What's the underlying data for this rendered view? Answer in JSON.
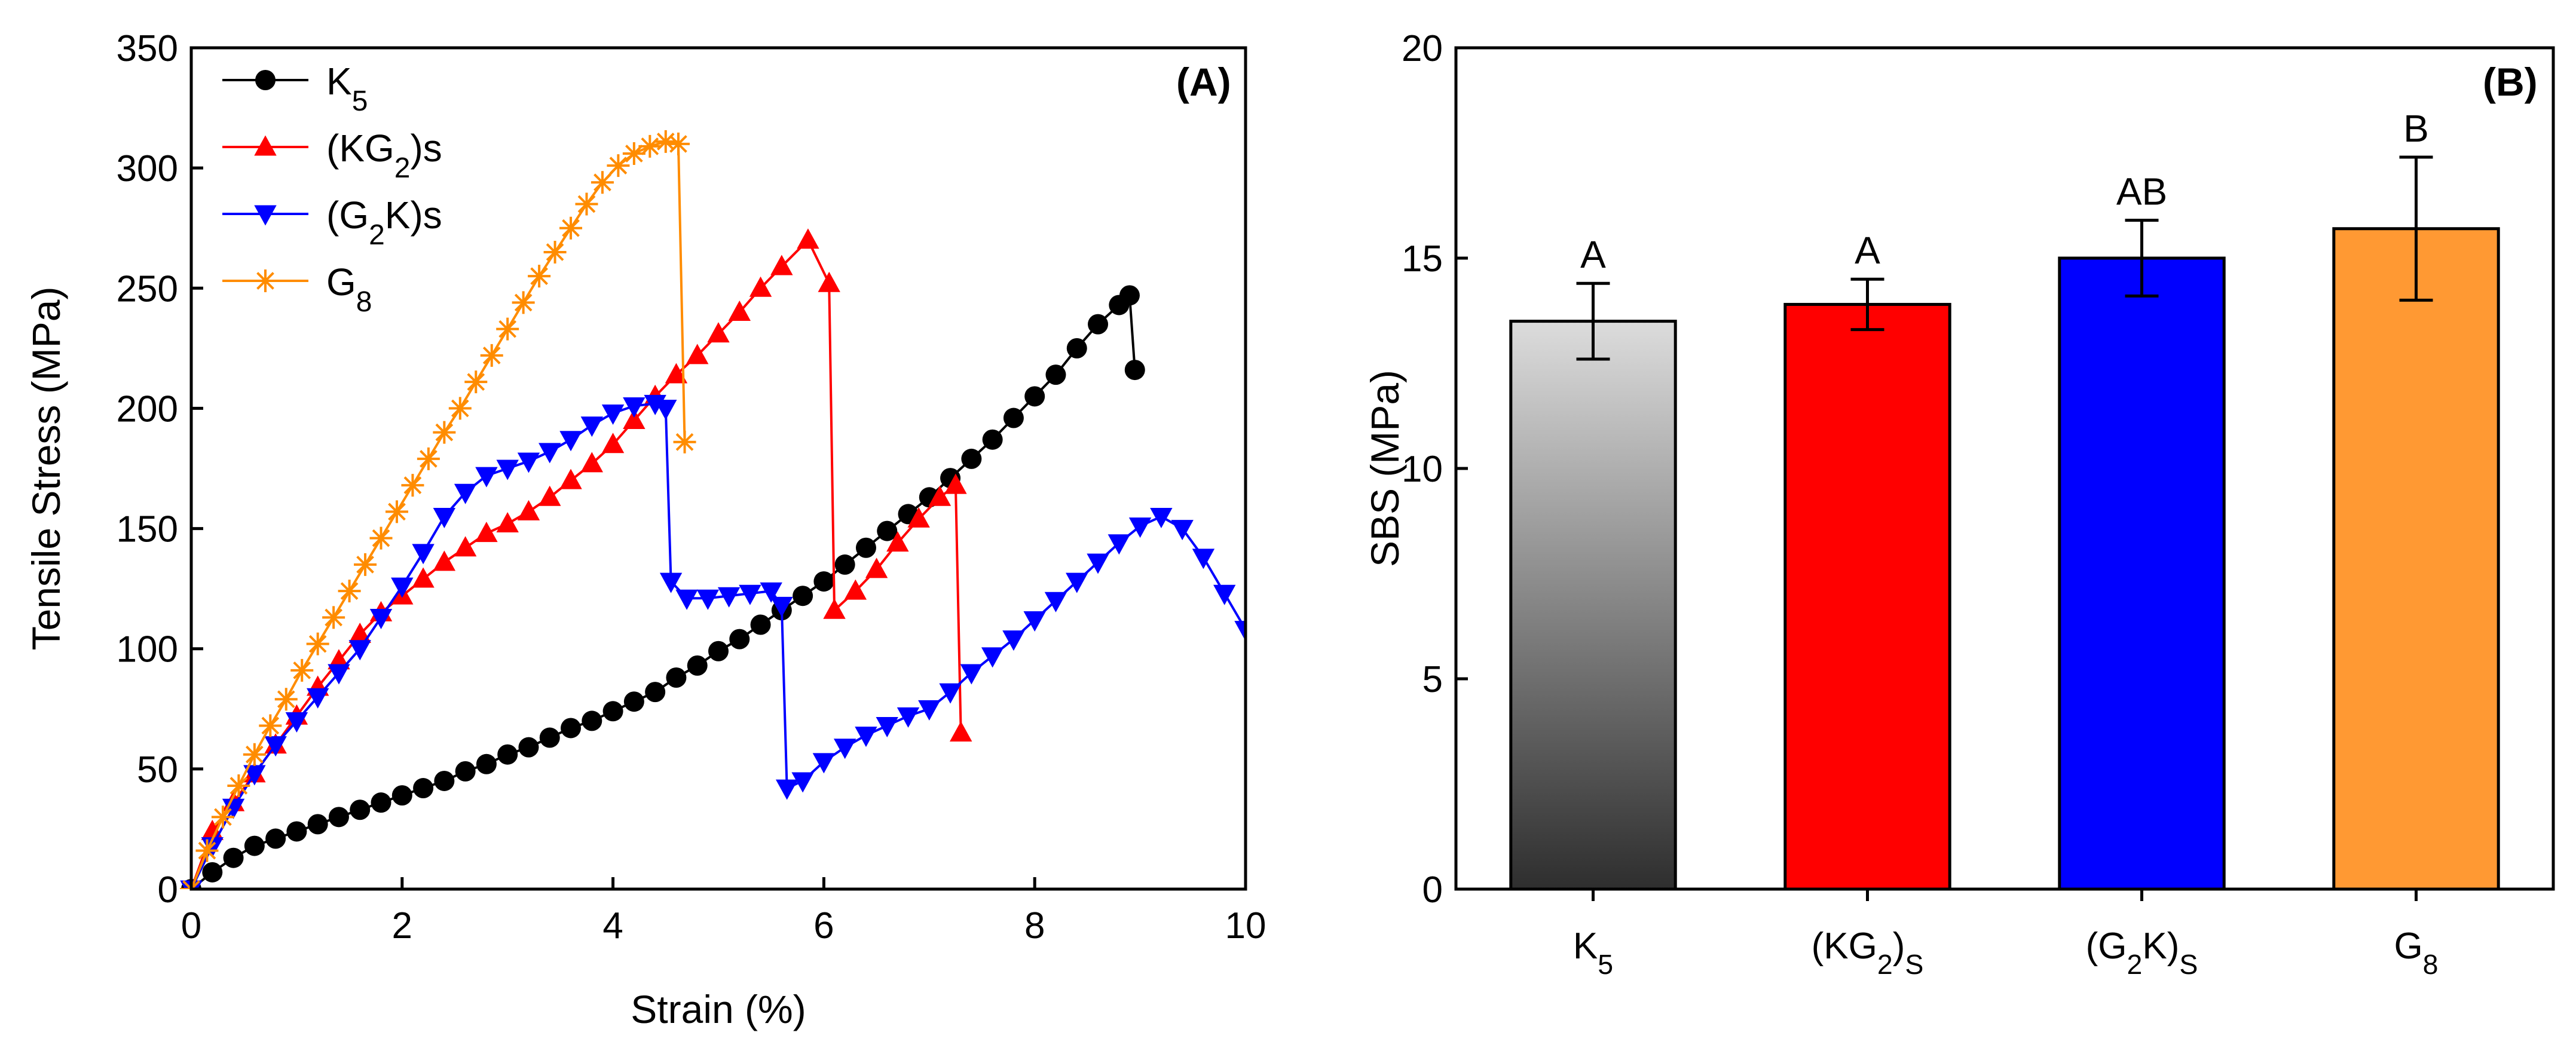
{
  "chart_data": [
    {
      "type": "line",
      "panel_label": "(A)",
      "xlabel": "Strain (%)",
      "ylabel": "Tensile Stress (MPa)",
      "xlim": [
        0,
        10
      ],
      "ylim": [
        0,
        350
      ],
      "x_ticks": [
        0,
        2,
        4,
        6,
        8,
        10
      ],
      "y_ticks": [
        0,
        50,
        100,
        150,
        200,
        250,
        300,
        350
      ],
      "legend_position": "top-left",
      "series": [
        {
          "name": "K5",
          "legend_base": "K",
          "legend_sub": "5",
          "legend_tail": "",
          "color": "#000000",
          "marker": "circle",
          "x": [
            0.0,
            0.2,
            0.4,
            0.6,
            0.8,
            1.0,
            1.2,
            1.4,
            1.6,
            1.8,
            2.0,
            2.2,
            2.4,
            2.6,
            2.8,
            3.0,
            3.2,
            3.4,
            3.6,
            3.8,
            4.0,
            4.2,
            4.4,
            4.6,
            4.8,
            5.0,
            5.2,
            5.4,
            5.6,
            5.8,
            6.0,
            6.2,
            6.4,
            6.6,
            6.8,
            7.0,
            7.2,
            7.4,
            7.6,
            7.8,
            8.0,
            8.2,
            8.4,
            8.6,
            8.8,
            8.9,
            8.95
          ],
          "y": [
            0,
            7,
            13,
            18,
            21,
            24,
            27,
            30,
            33,
            36,
            39,
            42,
            45,
            49,
            52,
            56,
            59,
            63,
            67,
            70,
            74,
            78,
            82,
            88,
            93,
            99,
            104,
            110,
            116,
            122,
            128,
            135,
            142,
            149,
            156,
            163,
            171,
            179,
            187,
            196,
            205,
            214,
            225,
            235,
            243,
            247,
            216
          ]
        },
        {
          "name": "(KG2)s",
          "legend_base": "(KG",
          "legend_sub": "2",
          "legend_tail": ")s",
          "color": "#ff0000",
          "marker": "triangle-up",
          "x": [
            0.0,
            0.2,
            0.4,
            0.6,
            0.8,
            1.0,
            1.2,
            1.4,
            1.6,
            1.8,
            2.0,
            2.2,
            2.4,
            2.6,
            2.8,
            3.0,
            3.2,
            3.4,
            3.6,
            3.8,
            4.0,
            4.2,
            4.4,
            4.6,
            4.8,
            5.0,
            5.2,
            5.4,
            5.6,
            5.85,
            6.05,
            6.1,
            6.3,
            6.5,
            6.7,
            6.9,
            7.1,
            7.25,
            7.3
          ],
          "y": [
            0,
            24,
            36,
            48,
            60,
            72,
            84,
            95,
            106,
            115,
            122,
            129,
            136,
            142,
            148,
            152,
            157,
            163,
            170,
            177,
            185,
            195,
            205,
            214,
            222,
            231,
            240,
            250,
            259,
            270,
            252,
            116,
            124,
            133,
            144,
            154,
            163,
            168,
            65
          ]
        },
        {
          "name": "(G2K)s",
          "legend_base": "(G",
          "legend_sub": "2",
          "legend_tail": "K)s",
          "color": "#0000ff",
          "marker": "triangle-down",
          "x": [
            0.0,
            0.2,
            0.4,
            0.6,
            0.8,
            1.0,
            1.2,
            1.4,
            1.6,
            1.8,
            2.0,
            2.2,
            2.4,
            2.6,
            2.8,
            3.0,
            3.2,
            3.4,
            3.6,
            3.8,
            4.0,
            4.2,
            4.4,
            4.5,
            4.55,
            4.7,
            4.9,
            5.1,
            5.3,
            5.5,
            5.6,
            5.65,
            5.8,
            6.0,
            6.2,
            6.4,
            6.6,
            6.8,
            7.0,
            7.2,
            7.4,
            7.6,
            7.8,
            8.0,
            8.2,
            8.4,
            8.6,
            8.8,
            9.0,
            9.2,
            9.4,
            9.6,
            9.8,
            10.0
          ],
          "y": [
            0,
            18,
            34,
            48,
            60,
            70,
            80,
            90,
            100,
            113,
            126,
            140,
            155,
            165,
            172,
            175,
            178,
            182,
            187,
            193,
            198,
            201,
            202,
            200,
            128,
            121,
            121,
            122,
            123,
            124,
            118,
            42,
            45,
            53,
            59,
            64,
            68,
            72,
            75,
            82,
            90,
            97,
            104,
            112,
            120,
            128,
            136,
            144,
            151,
            155,
            150,
            138,
            123,
            108
          ]
        },
        {
          "name": "G8",
          "legend_base": "G",
          "legend_sub": "8",
          "legend_tail": "",
          "color": "#ff8c00",
          "marker": "asterisk",
          "x": [
            0.0,
            0.15,
            0.3,
            0.45,
            0.6,
            0.75,
            0.9,
            1.05,
            1.2,
            1.35,
            1.5,
            1.65,
            1.8,
            1.95,
            2.1,
            2.25,
            2.4,
            2.55,
            2.7,
            2.85,
            3.0,
            3.15,
            3.3,
            3.45,
            3.6,
            3.75,
            3.9,
            4.05,
            4.2,
            4.35,
            4.5,
            4.62,
            4.68
          ],
          "y": [
            0,
            16,
            30,
            43,
            56,
            68,
            79,
            91,
            102,
            113,
            124,
            135,
            146,
            157,
            168,
            179,
            190,
            200,
            211,
            222,
            233,
            244,
            255,
            265,
            275,
            285,
            294,
            301,
            306,
            309,
            311,
            310,
            186
          ]
        }
      ]
    },
    {
      "type": "bar",
      "panel_label": "(B)",
      "xlabel": "",
      "ylabel": "SBS (MPa)",
      "ylim": [
        0,
        20
      ],
      "y_ticks": [
        0,
        5,
        10,
        15,
        20
      ],
      "categories": [
        "K5",
        "(KG2)S",
        "(G2K)S",
        "G8"
      ],
      "category_labels": [
        {
          "base": "K",
          "sub": "5",
          "tail": "",
          "sub2": ""
        },
        {
          "base": "(KG",
          "sub": "2",
          "tail": ")",
          "sub2": "S"
        },
        {
          "base": "(G",
          "sub": "2",
          "tail": "K)",
          "sub2": "S"
        },
        {
          "base": "G",
          "sub": "8",
          "tail": "",
          "sub2": ""
        }
      ],
      "values": [
        13.5,
        13.9,
        15.0,
        15.7
      ],
      "errors": [
        0.9,
        0.6,
        0.9,
        1.7
      ],
      "significance_labels": [
        "A",
        "A",
        "AB",
        "B"
      ],
      "colors": [
        "gradient-gray",
        "#ff0000",
        "#0000ff",
        "#ff9933"
      ]
    }
  ]
}
